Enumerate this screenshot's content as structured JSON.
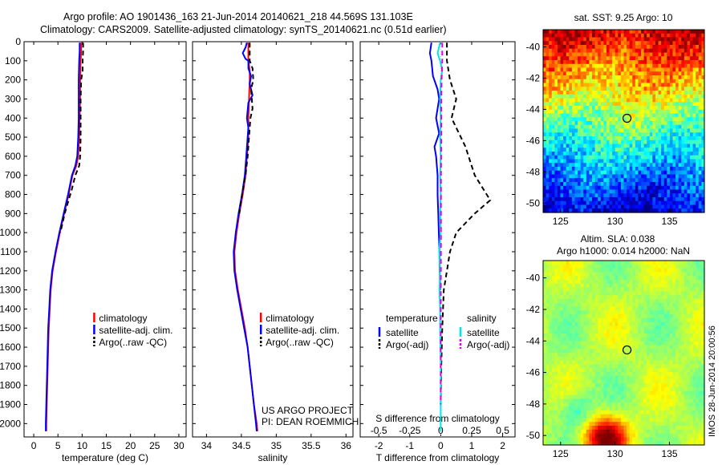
{
  "header": {
    "title": "Argo profile: AO 1901436_163 21-Jun-2014 20140621_218 44.569S 131.103E",
    "subtitle": "Climatology: CARS2009. Satellite-adjusted climatology: synTS_20140621.nc (0.51d earlier)"
  },
  "colors": {
    "climatology": "#ff0000",
    "satellite": "#0000ff",
    "argo": "#000000",
    "sal_satellite": "#00e5e5",
    "sal_argo": "#e000e0"
  },
  "depth_axis": {
    "ticks": [
      0,
      100,
      200,
      300,
      400,
      500,
      600,
      700,
      800,
      900,
      1000,
      1100,
      1200,
      1300,
      1400,
      1500,
      1600,
      1700,
      1800,
      1900,
      2000
    ],
    "ylim": [
      0,
      2070
    ]
  },
  "chart_data": [
    {
      "id": "temperature",
      "type": "line",
      "xlabel": "temperature (deg C)",
      "xlim": [
        -2,
        31.5
      ],
      "xticks": [
        0,
        5,
        10,
        15,
        20,
        25,
        30
      ],
      "legend": [
        "climatology",
        "satellite-adj. clim.",
        "Argo(..raw -QC)"
      ],
      "series": [
        {
          "name": "climatology",
          "style": "solid",
          "color": "#ff0000",
          "points": [
            [
              9.8,
              5
            ],
            [
              9.8,
              50
            ],
            [
              9.7,
              100
            ],
            [
              9.6,
              200
            ],
            [
              9.6,
              300
            ],
            [
              9.5,
              400
            ],
            [
              9.4,
              500
            ],
            [
              9.2,
              600
            ],
            [
              8.8,
              650
            ],
            [
              8.0,
              700
            ],
            [
              7.2,
              800
            ],
            [
              6.3,
              900
            ],
            [
              5.4,
              1000
            ],
            [
              4.6,
              1100
            ],
            [
              3.9,
              1200
            ],
            [
              3.5,
              1300
            ],
            [
              3.3,
              1400
            ],
            [
              3.1,
              1500
            ],
            [
              3.0,
              1600
            ],
            [
              2.9,
              1700
            ],
            [
              2.8,
              1800
            ],
            [
              2.7,
              1900
            ],
            [
              2.6,
              2000
            ],
            [
              2.6,
              2040
            ]
          ]
        },
        {
          "name": "satellite-adj. clim.",
          "style": "solid",
          "color": "#0000ff",
          "points": [
            [
              9.5,
              5
            ],
            [
              9.5,
              50
            ],
            [
              9.4,
              100
            ],
            [
              9.3,
              200
            ],
            [
              9.3,
              300
            ],
            [
              9.3,
              400
            ],
            [
              9.2,
              500
            ],
            [
              9.0,
              600
            ],
            [
              8.6,
              650
            ],
            [
              7.9,
              700
            ],
            [
              7.1,
              800
            ],
            [
              6.2,
              900
            ],
            [
              5.3,
              1000
            ],
            [
              4.5,
              1100
            ],
            [
              3.8,
              1200
            ],
            [
              3.4,
              1300
            ],
            [
              3.2,
              1400
            ],
            [
              3.0,
              1500
            ],
            [
              2.9,
              1600
            ],
            [
              2.8,
              1700
            ],
            [
              2.7,
              1800
            ],
            [
              2.6,
              1900
            ],
            [
              2.5,
              2000
            ],
            [
              2.5,
              2040
            ]
          ]
        },
        {
          "name": "Argo(..raw -QC)",
          "style": "dashed",
          "color": "#000000",
          "points": [
            [
              10.2,
              5
            ],
            [
              10.2,
              50
            ],
            [
              10.1,
              100
            ],
            [
              10.1,
              150
            ],
            [
              9.8,
              200
            ],
            [
              9.7,
              300
            ],
            [
              9.7,
              400
            ],
            [
              9.7,
              500
            ],
            [
              9.6,
              600
            ],
            [
              9.4,
              650
            ],
            [
              8.6,
              700
            ],
            [
              7.8,
              780
            ],
            [
              7.2,
              830
            ],
            [
              6.4,
              900
            ],
            [
              5.5,
              1000
            ]
          ]
        }
      ]
    },
    {
      "id": "salinity",
      "type": "line",
      "xlabel": "salinity",
      "xlim": [
        33.8,
        36.1
      ],
      "xticks": [
        34,
        34.5,
        35,
        35.5,
        36
      ],
      "legend": [
        "climatology",
        "satellite-adj. clim.",
        "Argo(..raw -QC)"
      ],
      "series": [
        {
          "name": "climatology",
          "style": "solid",
          "color": "#ff0000",
          "points": [
            [
              34.6,
              5
            ],
            [
              34.6,
              100
            ],
            [
              34.62,
              150
            ],
            [
              34.62,
              200
            ],
            [
              34.61,
              300
            ],
            [
              34.6,
              400
            ],
            [
              34.6,
              500
            ],
            [
              34.58,
              600
            ],
            [
              34.56,
              700
            ],
            [
              34.52,
              800
            ],
            [
              34.47,
              900
            ],
            [
              34.43,
              1000
            ],
            [
              34.4,
              1100
            ],
            [
              34.41,
              1200
            ],
            [
              34.45,
              1300
            ],
            [
              34.5,
              1400
            ],
            [
              34.55,
              1500
            ],
            [
              34.59,
              1600
            ],
            [
              34.62,
              1700
            ],
            [
              34.65,
              1800
            ],
            [
              34.68,
              1900
            ],
            [
              34.72,
              2000
            ],
            [
              34.73,
              2040
            ]
          ]
        },
        {
          "name": "satellite-adj. clim.",
          "style": "solid",
          "color": "#0000ff",
          "points": [
            [
              34.58,
              5
            ],
            [
              34.56,
              30
            ],
            [
              34.52,
              60
            ],
            [
              34.56,
              90
            ],
            [
              34.6,
              100
            ],
            [
              34.6,
              140
            ],
            [
              34.64,
              180
            ],
            [
              34.62,
              220
            ],
            [
              34.66,
              280
            ],
            [
              34.6,
              320
            ],
            [
              34.58,
              400
            ],
            [
              34.6,
              450
            ],
            [
              34.59,
              500
            ],
            [
              34.57,
              600
            ],
            [
              34.55,
              700
            ],
            [
              34.51,
              800
            ],
            [
              34.46,
              900
            ],
            [
              34.42,
              1000
            ],
            [
              34.39,
              1100
            ],
            [
              34.4,
              1200
            ],
            [
              34.44,
              1300
            ],
            [
              34.49,
              1400
            ],
            [
              34.54,
              1500
            ],
            [
              34.59,
              1600
            ],
            [
              34.62,
              1700
            ],
            [
              34.65,
              1800
            ],
            [
              34.68,
              1900
            ],
            [
              34.71,
              2000
            ],
            [
              34.72,
              2040
            ]
          ]
        },
        {
          "name": "Argo(..raw -QC)",
          "style": "dashed",
          "color": "#000000",
          "points": [
            [
              34.62,
              5
            ],
            [
              34.62,
              100
            ],
            [
              34.66,
              140
            ],
            [
              34.67,
              200
            ],
            [
              34.64,
              250
            ],
            [
              34.65,
              300
            ],
            [
              34.66,
              350
            ],
            [
              34.63,
              400
            ],
            [
              34.61,
              500
            ],
            [
              34.59,
              600
            ],
            [
              34.56,
              700
            ],
            [
              34.51,
              800
            ],
            [
              34.47,
              900
            ]
          ]
        }
      ]
    },
    {
      "id": "difference",
      "type": "line",
      "xlabel": "T difference from climatology",
      "xlabel_top": "S difference from climatology",
      "xlim": [
        -2.6,
        2.4
      ],
      "xticks": [
        -2,
        -1,
        0,
        1,
        2
      ],
      "xticks_top": [
        "-0.5",
        "-0.25",
        "0",
        "0.25",
        "0.5"
      ],
      "legend_titles": [
        "temperature",
        "salinity"
      ],
      "legend_left": [
        "satellite",
        "Argo(-adj)"
      ],
      "legend_right": [
        "satellite",
        "Argo(-adj)"
      ],
      "series": [
        {
          "name": "T satellite",
          "style": "solid",
          "color": "#0000ff",
          "points": [
            [
              -0.3,
              5
            ],
            [
              -0.35,
              60
            ],
            [
              -0.3,
              100
            ],
            [
              -0.25,
              180
            ],
            [
              -0.1,
              250
            ],
            [
              -0.05,
              300
            ],
            [
              -0.15,
              400
            ],
            [
              -0.05,
              480
            ],
            [
              -0.2,
              550
            ],
            [
              -0.15,
              600
            ],
            [
              -0.1,
              700
            ],
            [
              -0.1,
              800
            ],
            [
              -0.08,
              900
            ],
            [
              -0.06,
              1000
            ],
            [
              -0.04,
              1100
            ],
            [
              -0.03,
              1200
            ],
            [
              -0.02,
              1300
            ]
          ]
        },
        {
          "name": "T Argo(-adj)",
          "style": "dashed",
          "color": "#000000",
          "points": [
            [
              0.2,
              5
            ],
            [
              0.2,
              100
            ],
            [
              0.3,
              200
            ],
            [
              0.5,
              300
            ],
            [
              0.35,
              400
            ],
            [
              0.8,
              550
            ],
            [
              1.1,
              700
            ],
            [
              1.6,
              830
            ],
            [
              1.1,
              900
            ],
            [
              0.5,
              1000
            ],
            [
              0.3,
              1100
            ],
            [
              0.2,
              1200
            ],
            [
              0.1,
              1300
            ],
            [
              0.05,
              1500
            ],
            [
              0.02,
              1700
            ],
            [
              0.0,
              1900
            ]
          ]
        },
        {
          "name": "S satellite",
          "style": "solid",
          "color": "#00e5e5",
          "points": [
            [
              -0.02,
              5
            ],
            [
              -0.1,
              60
            ],
            [
              -0.02,
              100
            ],
            [
              0.05,
              150
            ],
            [
              0.0,
              200
            ],
            [
              -0.02,
              300
            ],
            [
              0.0,
              400
            ],
            [
              -0.02,
              500
            ],
            [
              0.0,
              600
            ],
            [
              -0.02,
              700
            ],
            [
              0.0,
              800
            ],
            [
              -0.02,
              900
            ],
            [
              0.0,
              1000
            ],
            [
              -0.05,
              1100
            ],
            [
              -0.02,
              1200
            ],
            [
              -0.04,
              1300
            ],
            [
              -0.02,
              1400
            ],
            [
              -0.02,
              1500
            ],
            [
              -0.01,
              1600
            ],
            [
              0.0,
              1700
            ],
            [
              0.0,
              1800
            ],
            [
              0.0,
              1900
            ],
            [
              0.0,
              2040
            ]
          ]
        },
        {
          "name": "S Argo(-adj)",
          "style": "dashed",
          "color": "#e000e0",
          "points": [
            [
              0.05,
              5
            ],
            [
              0.05,
              100
            ],
            [
              0.03,
              200
            ],
            [
              0.02,
              300
            ],
            [
              0.02,
              500
            ],
            [
              0.01,
              700
            ],
            [
              0.01,
              1000
            ],
            [
              0.0,
              1500
            ],
            [
              0.0,
              1900
            ]
          ]
        }
      ]
    }
  ],
  "credits": {
    "line1": "US ARGO PROJECT",
    "line2": "PI: DEAN ROEMMICH"
  },
  "maps": {
    "top": {
      "title": "sat. SST: 9.25 Argo: 10",
      "yticks": [
        "-40",
        "-42",
        "-44",
        "-46",
        "-48",
        "-50"
      ],
      "xticks": [
        "125",
        "130",
        "135"
      ],
      "float_marker": {
        "lon": 131.1,
        "lat": -44.57
      }
    },
    "bottom": {
      "title_line1": "Altim. SLA: 0.038",
      "title_line2": "Argo h1000: 0.014 h2000: NaN",
      "yticks": [
        "-40",
        "-42",
        "-44",
        "-46",
        "-48",
        "-50"
      ],
      "xticks": [
        "125",
        "130",
        "135"
      ],
      "float_marker": {
        "lon": 131.1,
        "lat": -44.57
      }
    },
    "stamp": "IMOS 28-Jun-2014 20:00:56"
  }
}
